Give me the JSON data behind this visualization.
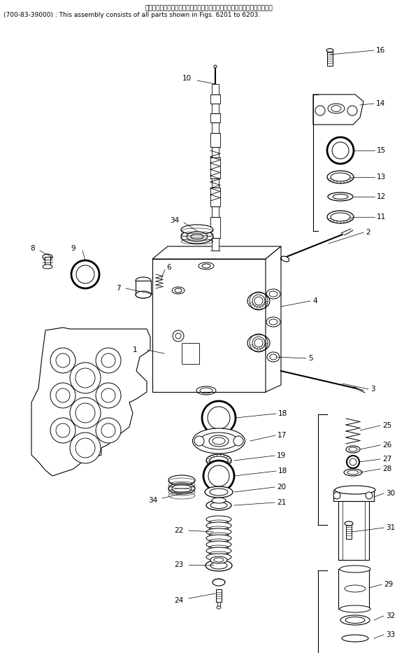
{
  "title_jp": "このアセンブリの構成部品は第６２０１図から第６２０３図まで含みます．",
  "title_en": "(700-83-39000) : This assembly consists of all parts shown in Figs. 6201 to 6203.",
  "bg_color": "#ffffff",
  "line_color": "#000000",
  "text_color": "#000000",
  "font_size": 7.5
}
